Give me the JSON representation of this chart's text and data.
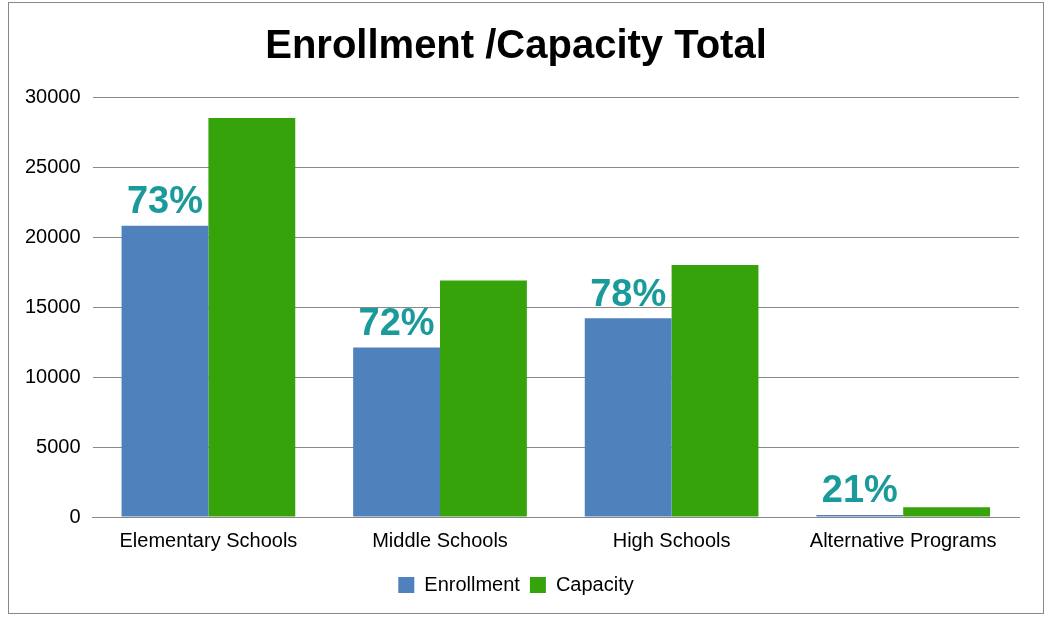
{
  "chart_data": {
    "type": "bar",
    "title": "Enrollment /Capacity Total",
    "categories": [
      "Elementary Schools",
      "Middle Schools",
      "High Schools",
      "Alternative Programs"
    ],
    "series": [
      {
        "name": "Enrollment",
        "color": "#4f81bd",
        "values": [
          20800,
          12100,
          14200,
          150
        ]
      },
      {
        "name": "Capacity",
        "color": "#36a30b",
        "values": [
          28500,
          16900,
          18000,
          700
        ]
      }
    ],
    "ylim": [
      0,
      30000
    ],
    "yticks": [
      0,
      5000,
      10000,
      15000,
      20000,
      25000,
      30000
    ],
    "grid": "y",
    "legend": "bottom",
    "annotations": [
      {
        "text": "73%",
        "x": "Elementary Schools",
        "y": 20800
      },
      {
        "text": "72%",
        "x": "Middle Schools",
        "y": 12100
      },
      {
        "text": "78%",
        "x": "High Schools",
        "y": 14200
      },
      {
        "text": "21%",
        "x": "Alternative Programs",
        "y": 150
      }
    ]
  }
}
